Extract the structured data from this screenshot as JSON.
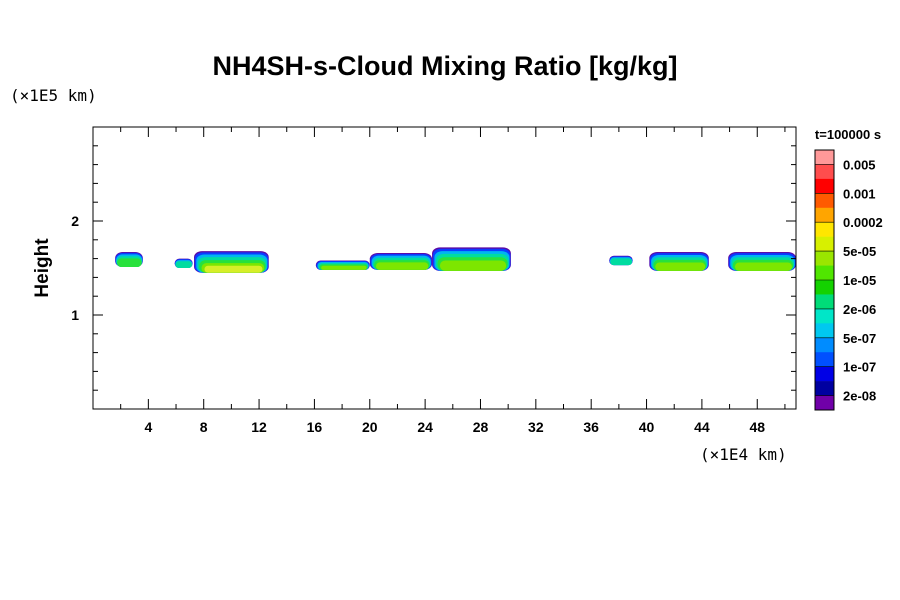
{
  "chart_data": {
    "type": "heatmap",
    "title": "NH4SH-s-Cloud Mixing Ratio [kg/kg]",
    "xlabel": "",
    "ylabel": "Height",
    "x_unit": "(×1E4 km)",
    "y_unit": "(×1E5 km)",
    "xlim": [
      0,
      50.8
    ],
    "ylim": [
      0,
      3
    ],
    "x_ticks": [
      4,
      8,
      12,
      16,
      20,
      24,
      28,
      32,
      36,
      40,
      44,
      48
    ],
    "y_ticks": [
      1,
      2
    ],
    "grid": false,
    "time_label": "t=100000 s",
    "colorbar": {
      "labels": [
        "0.005",
        "0.001",
        "0.0002",
        "5e-05",
        "1e-05",
        "2e-06",
        "5e-07",
        "1e-07",
        "2e-08"
      ],
      "colors": [
        "#ff9999",
        "#ff4d4d",
        "#ff0000",
        "#ff5a00",
        "#ffa500",
        "#ffe600",
        "#d7f000",
        "#9ae600",
        "#50e600",
        "#14d200",
        "#00dc78",
        "#00e6c8",
        "#00c8f0",
        "#008cff",
        "#0050ff",
        "#0000e6",
        "#0000a0",
        "#7000a8"
      ]
    },
    "cloud_blobs": [
      {
        "x0": 1.6,
        "x1": 3.6,
        "ytop": 1.67,
        "ybot": 1.51,
        "core": 1
      },
      {
        "x0": 5.9,
        "x1": 7.2,
        "ytop": 1.6,
        "ybot": 1.5,
        "core": 0
      },
      {
        "x0": 7.3,
        "x1": 12.7,
        "ytop": 1.68,
        "ybot": 1.45,
        "core": 3
      },
      {
        "x0": 16.1,
        "x1": 20.0,
        "ytop": 1.58,
        "ybot": 1.48,
        "core": 2
      },
      {
        "x0": 20.0,
        "x1": 24.5,
        "ytop": 1.66,
        "ybot": 1.48,
        "core": 2
      },
      {
        "x0": 24.5,
        "x1": 30.2,
        "ytop": 1.72,
        "ybot": 1.47,
        "core": 2
      },
      {
        "x0": 37.3,
        "x1": 39.0,
        "ytop": 1.63,
        "ybot": 1.53,
        "core": 0
      },
      {
        "x0": 40.2,
        "x1": 44.5,
        "ytop": 1.67,
        "ybot": 1.47,
        "core": 2
      },
      {
        "x0": 45.9,
        "x1": 50.8,
        "ytop": 1.67,
        "ybot": 1.47,
        "core": 2
      }
    ]
  }
}
